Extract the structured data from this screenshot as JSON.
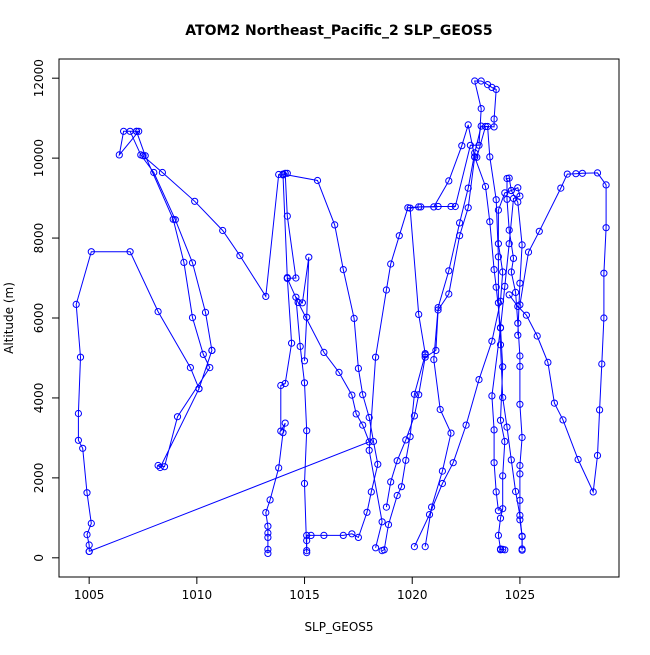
{
  "chart_data": {
    "type": "line",
    "title": "ATOM2 Northeast_Pacific_2 SLP_GEOS5",
    "xlabel": "SLP_GEOS5",
    "ylabel": "Altitude (m)",
    "xlim": [
      1003.6,
      1029.6
    ],
    "ylim": [
      -480,
      12480
    ],
    "xticks": [
      1005,
      1010,
      1015,
      1020,
      1025
    ],
    "yticks": [
      0,
      2000,
      4000,
      6000,
      8000,
      10000,
      12000
    ],
    "grid": false,
    "legend": "none",
    "colors": {
      "series": "#0000ff",
      "axis": "#000000"
    },
    "marker": "open-circle",
    "series": [
      {
        "values": [
          [
            1005.0,
            160
          ],
          [
            1005.0,
            320
          ],
          [
            1004.9,
            580
          ],
          [
            1005.1,
            860
          ],
          [
            1004.9,
            1630
          ],
          [
            1004.7,
            2740
          ],
          [
            1004.5,
            2940
          ],
          [
            1004.5,
            3610
          ],
          [
            1004.6,
            5020
          ],
          [
            1004.4,
            6340
          ],
          [
            1005.1,
            7660
          ],
          [
            1006.9,
            7660
          ],
          [
            1008.2,
            6160
          ],
          [
            1009.7,
            4760
          ],
          [
            1010.1,
            4230
          ],
          [
            1010.7,
            5190
          ],
          [
            1010.4,
            6140
          ],
          [
            1009.8,
            7380
          ],
          [
            1009.0,
            8460
          ],
          [
            1008.0,
            9640
          ],
          [
            1007.4,
            10080
          ],
          [
            1006.9,
            10670
          ],
          [
            1007.2,
            10670
          ],
          [
            1007.3,
            10670
          ],
          [
            1006.4,
            10080
          ],
          [
            1006.6,
            10670
          ],
          [
            1007.2,
            10670
          ],
          [
            1007.6,
            10060
          ],
          [
            1008.9,
            8470
          ],
          [
            1009.4,
            7390
          ],
          [
            1009.8,
            6010
          ],
          [
            1010.3,
            5090
          ],
          [
            1010.6,
            4760
          ],
          [
            1009.1,
            3530
          ],
          [
            1008.5,
            2280
          ],
          [
            1008.2,
            2310
          ],
          [
            1008.3,
            2260
          ],
          [
            1010.1,
            4230
          ],
          [
            1010.7,
            5190
          ]
        ]
      },
      {
        "values": [
          [
            1005.0,
            160
          ],
          [
            1018.0,
            2900
          ],
          [
            1017.7,
            3320
          ],
          [
            1017.4,
            3600
          ],
          [
            1017.2,
            4070
          ],
          [
            1016.6,
            4640
          ],
          [
            1015.9,
            5140
          ],
          [
            1014.7,
            6390
          ],
          [
            1014.2,
            6990
          ],
          [
            1014.6,
            7000
          ],
          [
            1014.2,
            8550
          ],
          [
            1014.1,
            9620
          ],
          [
            1014.2,
            9620
          ],
          [
            1014.0,
            9600
          ],
          [
            1015.6,
            9440
          ],
          [
            1016.4,
            8330
          ],
          [
            1016.8,
            7210
          ],
          [
            1017.3,
            5990
          ],
          [
            1017.5,
            4740
          ],
          [
            1017.7,
            4080
          ],
          [
            1018.0,
            3510
          ],
          [
            1018.2,
            2910
          ],
          [
            1018.4,
            2340
          ],
          [
            1018.1,
            1650
          ],
          [
            1017.9,
            1140
          ],
          [
            1017.5,
            510
          ],
          [
            1017.2,
            600
          ],
          [
            1016.8,
            560
          ],
          [
            1015.9,
            560
          ],
          [
            1015.3,
            560
          ],
          [
            1015.1,
            560
          ],
          [
            1015.1,
            430
          ],
          [
            1015.1,
            130
          ]
        ]
      },
      {
        "values": [
          [
            1013.3,
            110
          ],
          [
            1013.3,
            210
          ],
          [
            1013.3,
            510
          ],
          [
            1013.3,
            620
          ],
          [
            1013.3,
            790
          ],
          [
            1013.2,
            1130
          ],
          [
            1013.4,
            1450
          ],
          [
            1013.8,
            2250
          ],
          [
            1014.0,
            3130
          ],
          [
            1014.1,
            3370
          ],
          [
            1013.9,
            3170
          ],
          [
            1013.9,
            4310
          ],
          [
            1014.1,
            4360
          ],
          [
            1014.4,
            5370
          ],
          [
            1014.2,
            7010
          ],
          [
            1014.0,
            9580
          ],
          [
            1013.8,
            9590
          ],
          [
            1013.2,
            6540
          ],
          [
            1012.0,
            7560
          ],
          [
            1011.2,
            8190
          ],
          [
            1009.9,
            8920
          ],
          [
            1008.4,
            9640
          ],
          [
            1007.5,
            10060
          ]
        ]
      },
      {
        "values": [
          [
            1015.1,
            180
          ],
          [
            1015.0,
            1860
          ],
          [
            1015.1,
            3180
          ],
          [
            1015.0,
            4380
          ],
          [
            1014.8,
            5290
          ],
          [
            1014.6,
            6520
          ],
          [
            1014.9,
            6380
          ],
          [
            1015.2,
            7520
          ],
          [
            1015.1,
            6020
          ],
          [
            1015.0,
            4930
          ]
        ]
      },
      {
        "values": [
          [
            1018.6,
            180
          ],
          [
            1018.7,
            200
          ],
          [
            1018.9,
            830
          ],
          [
            1019.3,
            1560
          ],
          [
            1019.5,
            1780
          ],
          [
            1019.7,
            2440
          ],
          [
            1019.9,
            3030
          ],
          [
            1020.1,
            4090
          ],
          [
            1020.6,
            5080
          ],
          [
            1020.6,
            5110
          ],
          [
            1020.3,
            6090
          ],
          [
            1019.9,
            8750
          ],
          [
            1020.4,
            8780
          ],
          [
            1021.2,
            8790
          ],
          [
            1021.8,
            8790
          ],
          [
            1022.0,
            8790
          ],
          [
            1022.7,
            10320
          ],
          [
            1023.1,
            10320
          ],
          [
            1023.2,
            11240
          ],
          [
            1022.9,
            11930
          ],
          [
            1023.2,
            11930
          ],
          [
            1023.5,
            11840
          ],
          [
            1023.7,
            11770
          ],
          [
            1023.9,
            11720
          ],
          [
            1023.8,
            10980
          ],
          [
            1023.8,
            10780
          ],
          [
            1023.4,
            10790
          ],
          [
            1023.0,
            10020
          ],
          [
            1022.9,
            10030
          ],
          [
            1023.4,
            9290
          ],
          [
            1023.6,
            8410
          ],
          [
            1023.8,
            7210
          ],
          [
            1023.9,
            6770
          ],
          [
            1024.1,
            5760
          ],
          [
            1024.2,
            4780
          ],
          [
            1024.1,
            3440
          ],
          [
            1024.3,
            2910
          ],
          [
            1024.2,
            2050
          ],
          [
            1024.2,
            1230
          ],
          [
            1024.1,
            990
          ],
          [
            1024.0,
            560
          ],
          [
            1024.1,
            220
          ],
          [
            1024.1,
            200
          ],
          [
            1024.2,
            210
          ],
          [
            1024.3,
            200
          ]
        ]
      },
      {
        "values": [
          [
            1018.3,
            250
          ],
          [
            1018.6,
            900
          ],
          [
            1018.0,
            2690
          ],
          [
            1018.3,
            5020
          ],
          [
            1018.8,
            6700
          ],
          [
            1019.0,
            7350
          ],
          [
            1019.4,
            8060
          ],
          [
            1019.8,
            8760
          ],
          [
            1020.3,
            8780
          ],
          [
            1021.0,
            8780
          ],
          [
            1021.7,
            9430
          ],
          [
            1022.3,
            10310
          ],
          [
            1022.6,
            10830
          ],
          [
            1022.9,
            10030
          ],
          [
            1022.6,
            8760
          ],
          [
            1022.2,
            8060
          ],
          [
            1021.7,
            6600
          ],
          [
            1021.2,
            6200
          ],
          [
            1021.1,
            5190
          ],
          [
            1020.6,
            5020
          ],
          [
            1020.3,
            4080
          ],
          [
            1020.1,
            3550
          ],
          [
            1019.7,
            2950
          ],
          [
            1019.3,
            2430
          ],
          [
            1019.0,
            1900
          ],
          [
            1018.8,
            1270
          ]
        ]
      },
      {
        "values": [
          [
            1020.1,
            280
          ],
          [
            1020.8,
            1080
          ],
          [
            1021.4,
            1860
          ],
          [
            1021.9,
            2380
          ],
          [
            1022.5,
            3320
          ],
          [
            1023.1,
            4460
          ],
          [
            1023.7,
            5420
          ],
          [
            1024.1,
            6420
          ],
          [
            1024.2,
            7150
          ],
          [
            1024.0,
            7860
          ],
          [
            1024.0,
            8700
          ],
          [
            1024.3,
            9130
          ],
          [
            1024.6,
            9190
          ],
          [
            1024.9,
            9260
          ],
          [
            1025.0,
            9050
          ],
          [
            1024.7,
            8990
          ],
          [
            1024.5,
            7860
          ],
          [
            1024.3,
            6790
          ],
          [
            1024.1,
            5750
          ],
          [
            1023.7,
            4050
          ],
          [
            1023.8,
            3200
          ],
          [
            1023.8,
            2380
          ],
          [
            1023.9,
            1650
          ],
          [
            1024.0,
            1180
          ]
        ]
      },
      {
        "values": [
          [
            1020.6,
            280
          ],
          [
            1020.9,
            1270
          ],
          [
            1021.4,
            2170
          ],
          [
            1021.8,
            3120
          ],
          [
            1021.3,
            3710
          ],
          [
            1021.0,
            4960
          ],
          [
            1021.2,
            6260
          ],
          [
            1021.7,
            7180
          ],
          [
            1022.2,
            8380
          ],
          [
            1022.6,
            9250
          ],
          [
            1022.9,
            10130
          ],
          [
            1023.2,
            10800
          ],
          [
            1023.5,
            10790
          ],
          [
            1023.6,
            10030
          ],
          [
            1023.9,
            8960
          ],
          [
            1024.0,
            7530
          ],
          [
            1024.0,
            6380
          ],
          [
            1024.1,
            5330
          ],
          [
            1024.2,
            4010
          ],
          [
            1024.4,
            3270
          ],
          [
            1024.6,
            2450
          ],
          [
            1024.8,
            1660
          ],
          [
            1025.0,
            1060
          ],
          [
            1025.1,
            530
          ],
          [
            1025.1,
            220
          ]
        ]
      },
      {
        "values": [
          [
            1025.1,
            190
          ],
          [
            1025.1,
            540
          ],
          [
            1025.0,
            950
          ],
          [
            1025.0,
            1440
          ],
          [
            1025.0,
            2100
          ],
          [
            1025.0,
            2310
          ],
          [
            1025.1,
            3010
          ],
          [
            1025.0,
            3840
          ],
          [
            1025.0,
            4790
          ],
          [
            1025.0,
            5050
          ],
          [
            1024.9,
            5870
          ],
          [
            1024.8,
            6640
          ],
          [
            1024.6,
            7150
          ],
          [
            1024.7,
            7490
          ],
          [
            1024.5,
            8200
          ],
          [
            1024.4,
            8970
          ],
          [
            1024.4,
            9490
          ],
          [
            1024.5,
            9500
          ],
          [
            1024.6,
            9190
          ],
          [
            1024.9,
            8900
          ],
          [
            1025.1,
            7830
          ],
          [
            1025.0,
            6870
          ],
          [
            1024.9,
            5570
          ]
        ]
      },
      {
        "values": [
          [
            1025.0,
            6330
          ],
          [
            1025.4,
            7650
          ],
          [
            1025.9,
            8170
          ],
          [
            1026.9,
            9250
          ],
          [
            1027.2,
            9600
          ],
          [
            1027.6,
            9610
          ],
          [
            1027.9,
            9620
          ],
          [
            1028.6,
            9630
          ],
          [
            1029.0,
            9330
          ],
          [
            1029.0,
            8260
          ],
          [
            1028.9,
            7120
          ],
          [
            1028.9,
            6000
          ],
          [
            1028.8,
            4850
          ],
          [
            1028.7,
            3700
          ],
          [
            1028.6,
            2560
          ],
          [
            1028.4,
            1650
          ],
          [
            1027.7,
            2460
          ],
          [
            1027.0,
            3450
          ],
          [
            1026.6,
            3870
          ],
          [
            1026.3,
            4890
          ],
          [
            1025.8,
            5550
          ],
          [
            1025.3,
            6070
          ],
          [
            1024.9,
            6290
          ],
          [
            1024.5,
            6580
          ]
        ]
      }
    ]
  }
}
